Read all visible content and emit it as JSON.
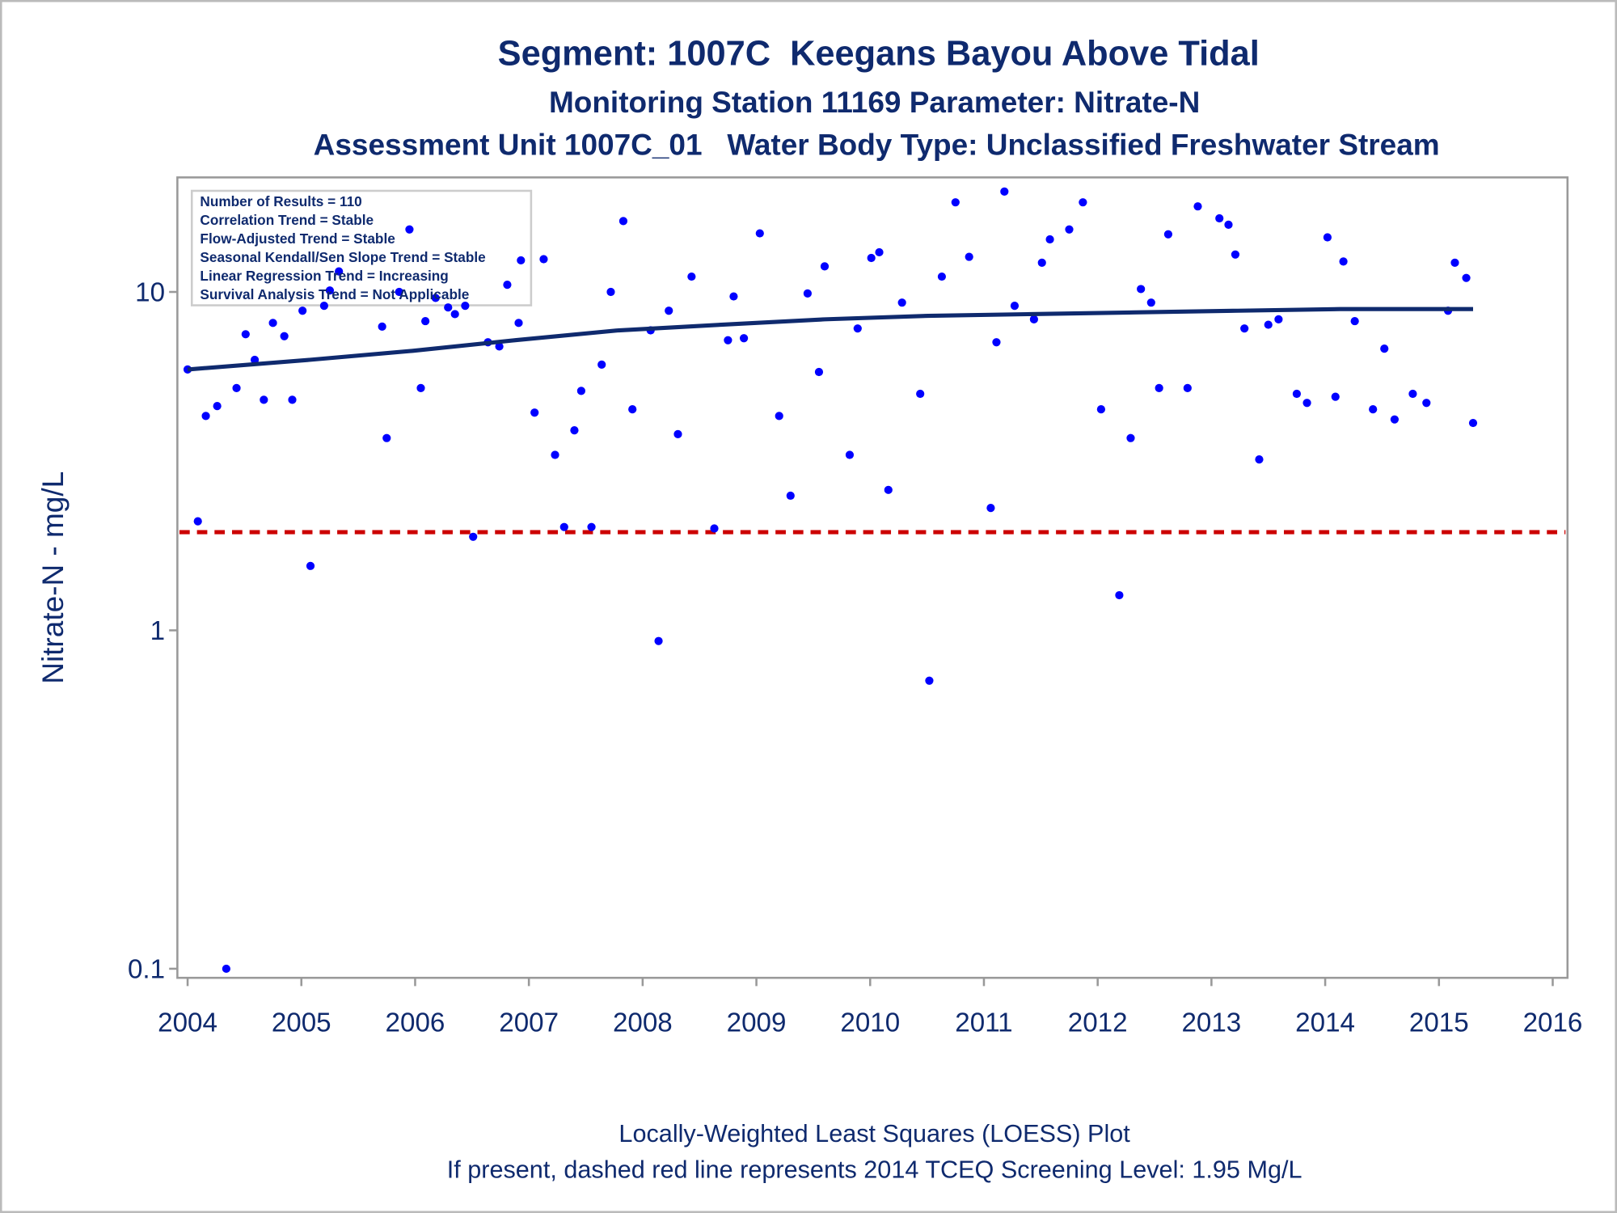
{
  "chart_data": {
    "type": "scatter",
    "title": "Segment: 1007C  Keegans Bayou Above Tidal",
    "subtitles": [
      "Monitoring Station 11169 Parameter: Nitrate-N",
      "Assessment Unit 1007C_01   Water Body Type: Unclassified Freshwater Stream"
    ],
    "y_label": "Nitrate-N - mg/L",
    "log_y": true,
    "xlim": [
      2003.91,
      2016.13
    ],
    "ylim": [
      0.094,
      21.8
    ],
    "xticks": [
      2004,
      2005,
      2006,
      2007,
      2008,
      2009,
      2010,
      2011,
      2012,
      2013,
      2014,
      2015,
      2016
    ],
    "yticks": [
      0.1,
      1,
      10
    ],
    "grid": false,
    "annotations": [
      "Number of Results = 110",
      "Correlation Trend = Stable",
      "Flow-Adjusted Trend = Stable",
      "Seasonal Kendall/Sen Slope Trend = Stable",
      "Linear Regression Trend = Increasing",
      "Survival Analysis Trend = Not Applicable"
    ],
    "footnotes": [
      "Locally-Weighted Least Squares (LOESS) Plot",
      "If present, dashed red line represents 2014 TCEQ Screening Level: 1.95 Mg/L"
    ],
    "reference_line": {
      "value": 1.95,
      "color": "#cc0000"
    },
    "series": [
      {
        "type": "scatter",
        "color": "#0000ff",
        "x": [
          2004.0,
          2004.09,
          2004.16,
          2004.26,
          2004.34,
          2004.43,
          2004.51,
          2004.59,
          2004.67,
          2004.75,
          2004.85,
          2004.92,
          2005.01,
          2005.08,
          2005.2,
          2005.25,
          2005.33,
          2005.71,
          2005.75,
          2005.86,
          2005.95,
          2006.05,
          2006.09,
          2006.18,
          2006.29,
          2006.35,
          2006.44,
          2006.51,
          2006.64,
          2006.74,
          2006.81,
          2006.91,
          2006.93,
          2007.05,
          2007.13,
          2007.23,
          2007.31,
          2007.4,
          2007.46,
          2007.55,
          2007.64,
          2007.72,
          2007.83,
          2007.91,
          2008.07,
          2008.14,
          2008.23,
          2008.31,
          2008.43,
          2008.63,
          2008.75,
          2008.8,
          2008.89,
          2009.03,
          2009.2,
          2009.3,
          2009.45,
          2009.55,
          2009.6,
          2009.82,
          2009.89,
          2010.01,
          2010.08,
          2010.16,
          2010.28,
          2010.44,
          2010.52,
          2010.63,
          2010.75,
          2010.87,
          2011.06,
          2011.11,
          2011.18,
          2011.27,
          2011.44,
          2011.51,
          2011.58,
          2011.75,
          2011.87,
          2012.03,
          2012.19,
          2012.29,
          2012.38,
          2012.47,
          2012.54,
          2012.62,
          2012.79,
          2012.88,
          2013.07,
          2013.15,
          2013.21,
          2013.29,
          2013.42,
          2013.5,
          2013.59,
          2013.75,
          2013.84,
          2014.02,
          2014.09,
          2014.16,
          2014.26,
          2014.42,
          2014.52,
          2014.61,
          2014.77,
          2014.89,
          2015.08,
          2015.14,
          2015.24,
          2015.3
        ],
        "values": [
          5.9,
          2.1,
          4.3,
          4.6,
          0.1,
          5.2,
          7.5,
          6.3,
          4.8,
          8.1,
          7.4,
          4.8,
          8.8,
          1.55,
          9.1,
          10.1,
          11.5,
          7.9,
          3.7,
          10.0,
          15.3,
          5.2,
          8.2,
          9.6,
          9.0,
          8.6,
          9.1,
          1.89,
          7.1,
          6.9,
          10.5,
          8.1,
          12.4,
          4.4,
          12.5,
          3.3,
          2.02,
          3.9,
          5.1,
          2.02,
          6.1,
          10.0,
          16.2,
          4.5,
          7.7,
          0.93,
          8.8,
          3.8,
          11.1,
          2.0,
          7.2,
          9.7,
          7.3,
          14.9,
          4.3,
          2.5,
          9.9,
          5.8,
          11.9,
          3.3,
          7.8,
          12.6,
          13.1,
          2.6,
          9.3,
          5.0,
          0.71,
          11.1,
          18.4,
          12.7,
          2.3,
          7.1,
          19.8,
          9.1,
          8.3,
          12.2,
          14.3,
          15.3,
          18.4,
          4.5,
          1.27,
          3.7,
          10.2,
          9.3,
          5.2,
          14.8,
          5.2,
          17.9,
          16.5,
          15.8,
          12.9,
          7.8,
          3.2,
          8.0,
          8.3,
          5.0,
          4.7,
          14.5,
          4.9,
          12.3,
          8.2,
          4.5,
          6.8,
          4.2,
          5.0,
          4.7,
          8.8,
          12.2,
          11.0,
          4.1
        ]
      },
      {
        "type": "line",
        "color": "#0f2a6e",
        "x": [
          2004.0,
          2005.07,
          2005.98,
          2006.88,
          2007.79,
          2008.69,
          2009.6,
          2010.51,
          2011.41,
          2012.32,
          2013.23,
          2014.13,
          2015.3
        ],
        "values": [
          5.9,
          6.3,
          6.7,
          7.2,
          7.7,
          8.0,
          8.3,
          8.5,
          8.6,
          8.7,
          8.8,
          8.9,
          8.9
        ]
      }
    ]
  }
}
